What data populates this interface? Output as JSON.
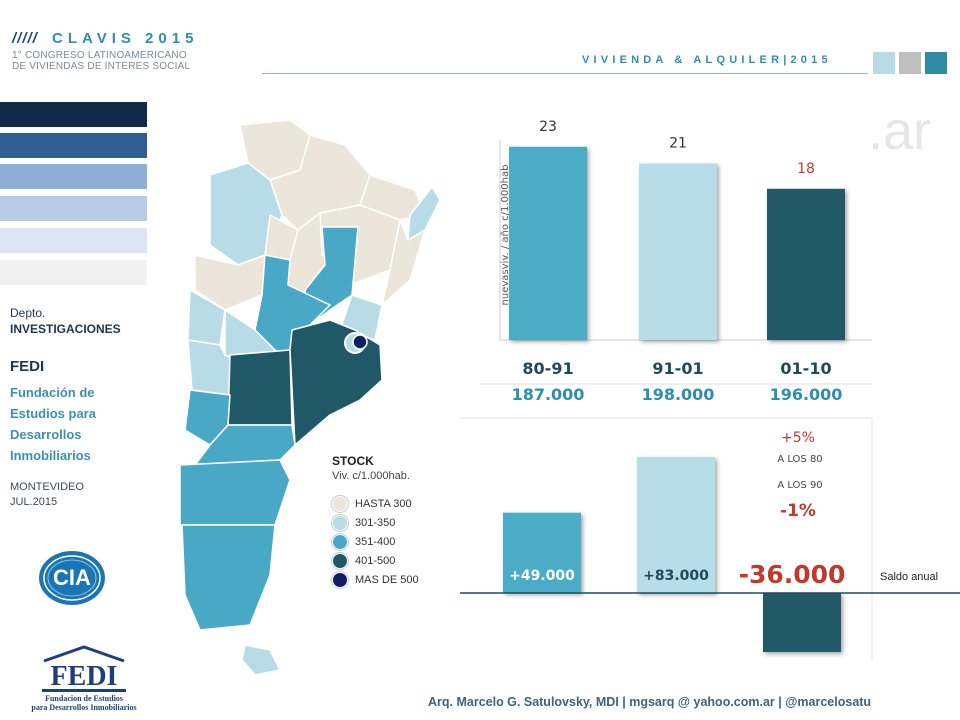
{
  "header": {
    "slashes": "/////",
    "brand": "CLAVIS 2015",
    "sub1": "1° CONGRESO LATINOAMERICANO",
    "sub2": "DE VIVIENDAS DE INTERES SOCIAL",
    "right": "VIVIENDA & ALQUILER|2015",
    "squares": [
      "#b8dce7",
      "#bfbfbf",
      "#2e8ba3"
    ]
  },
  "watermark": ".ar",
  "sidebar": {
    "strips": [
      "#12294a",
      "#2f5f92",
      "#8eaed6",
      "#b9cde9",
      "#dbe5f3",
      "#f1f1f1"
    ],
    "dept_line1": "Depto.",
    "dept_line2": "INVESTIGACIONES",
    "fedi": "FEDI",
    "fedi_full": "Fundación de Estudios para Desarrollos Inmobiliarios",
    "city": "MONTEVIDEO",
    "date": "JUL.2015",
    "logo_cia": "CIA",
    "logo_fedi": "FEDI",
    "logo_fedi_sub1": "Fundacion de Estudios",
    "logo_fedi_sub2": "para Desarrollos Inmobiliarios"
  },
  "map": {
    "title": "STOCK",
    "subtitle": "Viv. c/1.000hab.",
    "legend": [
      {
        "label": "HASTA 300",
        "color": "#ebe6d9"
      },
      {
        "label": "301-350",
        "color": "#b8dbe8"
      },
      {
        "label": "351-400",
        "color": "#4aa8c7"
      },
      {
        "label": "401-500",
        "color": "#215868"
      },
      {
        "label": "MAS DE 500",
        "color": "#0d1f5e"
      }
    ]
  },
  "chart_data": [
    {
      "type": "bar",
      "categories": [
        "80-91",
        "91-01",
        "01-10"
      ],
      "values": [
        23,
        21,
        18
      ],
      "totals": [
        "187.000",
        "198.000",
        "196.000"
      ],
      "ylabel": "nuevasviv. / año c/1.000hab",
      "ylim": [
        0,
        25
      ],
      "colors": [
        "#4aacc6",
        "#b7dde8",
        "#215968"
      ],
      "label_colors": [
        "#333333",
        "#333333",
        "#c0392b"
      ]
    },
    {
      "type": "bar",
      "categories": [
        "80-91",
        "91-01",
        "01-10"
      ],
      "values": [
        49000,
        83000,
        -36000
      ],
      "labels": [
        "+49.000",
        "+83.000",
        "-36.000"
      ],
      "baseline_label": "Saldo anual",
      "colors": [
        "#4aacc6",
        "#b7dde8",
        "#215968"
      ],
      "ylim": [
        -40000,
        90000
      ],
      "annotations": {
        "pct_up": "+5%",
        "line1": "A LOS 80",
        "line2": "A LOS 90",
        "pct_down": "-1%"
      }
    }
  ],
  "footer": "Arq. Marcelo G. Satulovsky, MDI | mgsarq @ yahoo.com.ar | @marcelosatu"
}
